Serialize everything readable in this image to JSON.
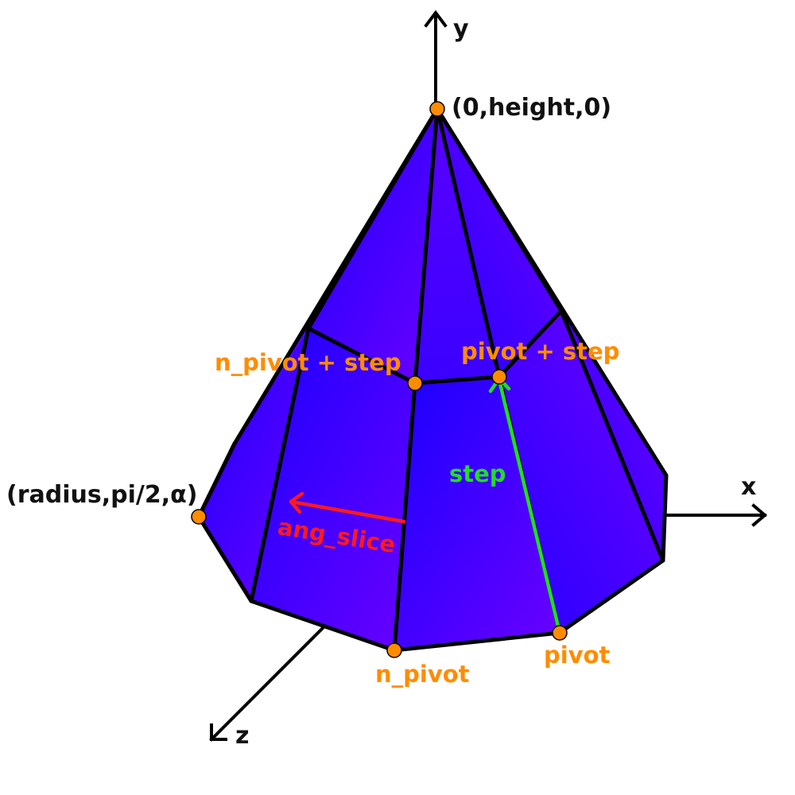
{
  "axes": {
    "x": "x",
    "y": "y",
    "z": "z"
  },
  "points": {
    "apex": "(0,height,0)",
    "base_left": "(radius,pi/2,α)",
    "n_pivot_step": "n_pivot + step",
    "pivot_step": "pivot + step",
    "n_pivot": "n_pivot",
    "pivot": "pivot"
  },
  "vectors": {
    "step": "step",
    "ang_slice": "ang_slice"
  },
  "colors": {
    "face_light": "#1a00ff",
    "face_dark": "#6a00ff",
    "edge": "#000000",
    "point": "#ff8c00",
    "step_vector": "#22dd22",
    "ang_slice_vector": "#ff1a1a"
  }
}
